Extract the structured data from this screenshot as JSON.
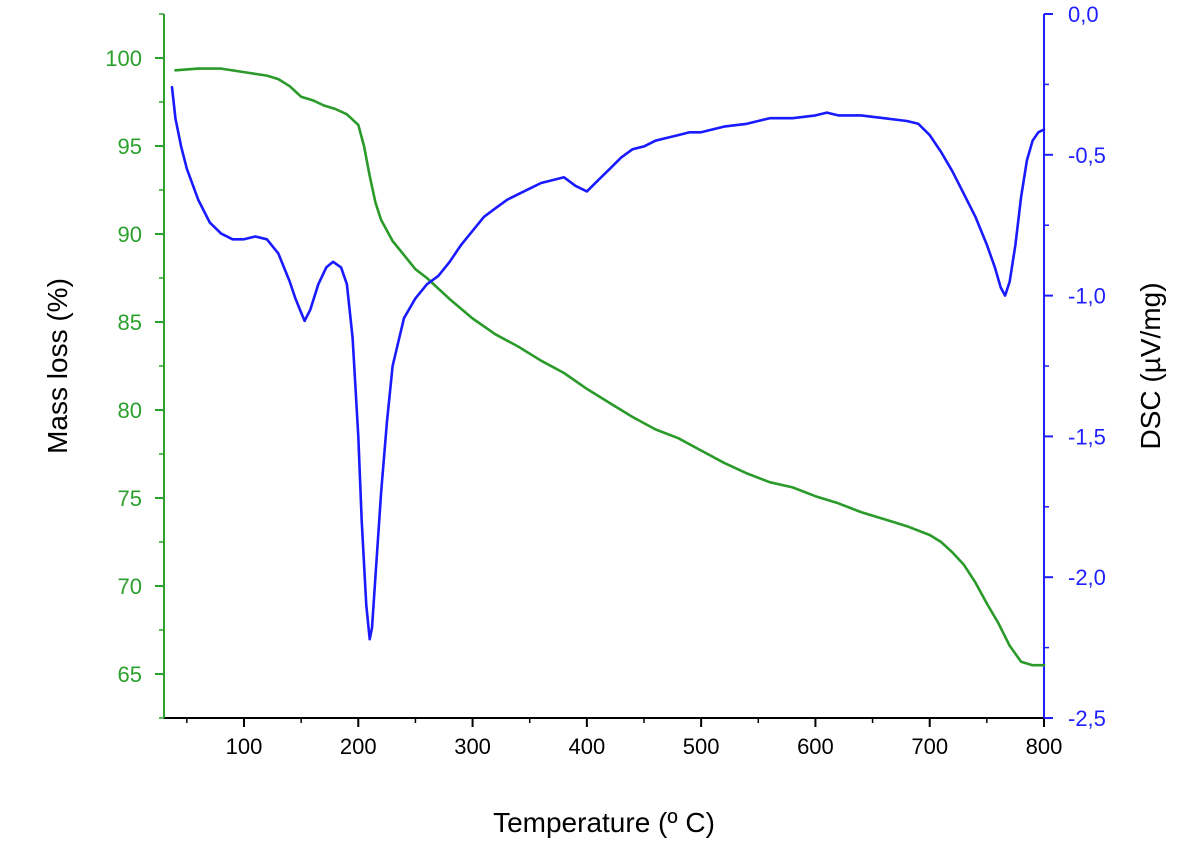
{
  "chart_data": {
    "type": "line",
    "xlabel": "Temperature (º C)",
    "ylabel_left": "Mass loss (%)",
    "ylabel_right": "DSC (µV/mg)",
    "xlim": [
      30,
      800
    ],
    "ylim_left": [
      62.5,
      102.5
    ],
    "ylim_right": [
      -2.5,
      0.0
    ],
    "x_ticks": [
      100,
      200,
      300,
      400,
      500,
      600,
      700,
      800
    ],
    "x_tick_labels": [
      "100",
      "200",
      "300",
      "400",
      "500",
      "600",
      "700",
      "800"
    ],
    "y_left_ticks": [
      65,
      70,
      75,
      80,
      85,
      90,
      95,
      100
    ],
    "y_left_tick_labels": [
      "65",
      "70",
      "75",
      "80",
      "85",
      "90",
      "95",
      "100"
    ],
    "y_right_ticks": [
      0.0,
      -0.5,
      -1.0,
      -1.5,
      -2.0,
      -2.5
    ],
    "y_right_tick_labels": [
      "0,0",
      "-0,5",
      "-1,0",
      "-1,5",
      "-2,0",
      "-2,5"
    ],
    "grid": false,
    "legend": "none",
    "colors": {
      "left_axis": "#2ca02c",
      "right_axis": "#1f1fff",
      "mass_series": "#2a9a2a",
      "dsc_series": "#1a1aff"
    },
    "series": [
      {
        "axis": "left",
        "x": [
          40,
          60,
          80,
          100,
          120,
          130,
          140,
          150,
          160,
          170,
          180,
          190,
          200,
          205,
          210,
          215,
          220,
          230,
          240,
          250,
          260,
          270,
          280,
          300,
          320,
          340,
          360,
          380,
          400,
          420,
          440,
          460,
          480,
          500,
          520,
          540,
          560,
          580,
          600,
          620,
          640,
          660,
          680,
          700,
          710,
          720,
          730,
          740,
          750,
          760,
          770,
          780,
          790,
          800
        ],
        "y": [
          99.3,
          99.4,
          99.4,
          99.2,
          99.0,
          98.8,
          98.4,
          97.8,
          97.6,
          97.3,
          97.1,
          96.8,
          96.2,
          95.0,
          93.3,
          91.8,
          90.8,
          89.6,
          88.8,
          88.0,
          87.5,
          86.9,
          86.3,
          85.2,
          84.3,
          83.6,
          82.8,
          82.1,
          81.2,
          80.4,
          79.6,
          78.9,
          78.4,
          77.7,
          77.0,
          76.4,
          75.9,
          75.6,
          75.1,
          74.7,
          74.2,
          73.8,
          73.4,
          72.9,
          72.5,
          71.9,
          71.2,
          70.2,
          69.0,
          67.9,
          66.6,
          65.7,
          65.5,
          65.5
        ]
      },
      {
        "axis": "right",
        "x": [
          37,
          40,
          45,
          50,
          60,
          70,
          80,
          90,
          100,
          110,
          120,
          130,
          140,
          145,
          150,
          153,
          158,
          165,
          172,
          178,
          185,
          190,
          195,
          200,
          203,
          207,
          210,
          212,
          215,
          220,
          225,
          230,
          240,
          250,
          260,
          270,
          280,
          290,
          300,
          310,
          320,
          330,
          340,
          350,
          360,
          370,
          380,
          390,
          400,
          410,
          420,
          430,
          440,
          450,
          460,
          470,
          480,
          490,
          500,
          520,
          540,
          560,
          580,
          600,
          610,
          620,
          640,
          660,
          680,
          690,
          700,
          710,
          720,
          730,
          740,
          750,
          757,
          762,
          766,
          770,
          775,
          780,
          785,
          790,
          795,
          800
        ],
        "y": [
          -0.26,
          -0.37,
          -0.47,
          -0.55,
          -0.66,
          -0.74,
          -0.78,
          -0.8,
          -0.8,
          -0.79,
          -0.8,
          -0.85,
          -0.95,
          -1.01,
          -1.06,
          -1.09,
          -1.05,
          -0.96,
          -0.9,
          -0.88,
          -0.9,
          -0.96,
          -1.15,
          -1.5,
          -1.8,
          -2.1,
          -2.22,
          -2.18,
          -2.0,
          -1.7,
          -1.45,
          -1.25,
          -1.08,
          -1.01,
          -0.96,
          -0.93,
          -0.88,
          -0.82,
          -0.77,
          -0.72,
          -0.69,
          -0.66,
          -0.64,
          -0.62,
          -0.6,
          -0.59,
          -0.58,
          -0.61,
          -0.63,
          -0.59,
          -0.55,
          -0.51,
          -0.48,
          -0.47,
          -0.45,
          -0.44,
          -0.43,
          -0.42,
          -0.42,
          -0.4,
          -0.39,
          -0.37,
          -0.37,
          -0.36,
          -0.35,
          -0.36,
          -0.36,
          -0.37,
          -0.38,
          -0.39,
          -0.43,
          -0.49,
          -0.56,
          -0.64,
          -0.72,
          -0.82,
          -0.9,
          -0.97,
          -1.0,
          -0.95,
          -0.82,
          -0.65,
          -0.52,
          -0.45,
          -0.42,
          -0.41
        ]
      }
    ]
  }
}
